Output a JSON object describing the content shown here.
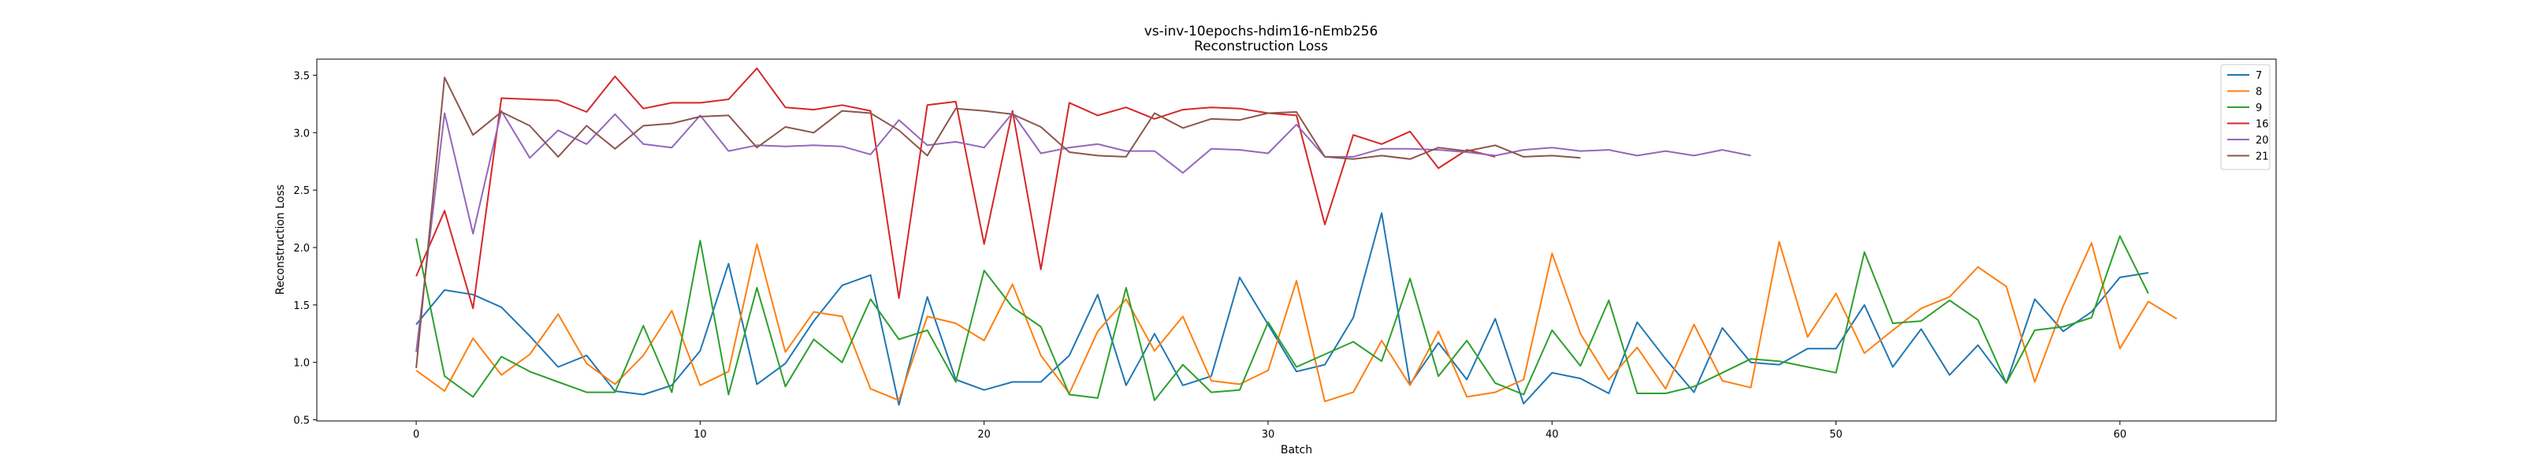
{
  "chart_data": {
    "type": "line",
    "title": "vs-inv-10epochs-hdim16-nEmb256",
    "subtitle": "Reconstruction Loss",
    "xlabel": "Batch",
    "ylabel": "Reconstruction Loss",
    "xlim": [
      -3.5,
      65.5
    ],
    "ylim": [
      0.49,
      3.64
    ],
    "xticks": [
      0,
      10,
      20,
      30,
      40,
      50,
      60
    ],
    "yticks": [
      0.5,
      1.0,
      1.5,
      2.0,
      2.5,
      3.0,
      3.5
    ],
    "xtick_labels": [
      "0",
      "10",
      "20",
      "30",
      "40",
      "50",
      "60"
    ],
    "ytick_labels": [
      "0.5",
      "1.0",
      "1.5",
      "2.0",
      "2.5",
      "3.0",
      "3.5"
    ],
    "grid": false,
    "legend_position": "top-right",
    "series": [
      {
        "name": "7",
        "color": "#1f77b4",
        "values": [
          1.33,
          1.63,
          1.59,
          1.48,
          1.23,
          0.96,
          1.06,
          0.75,
          0.72,
          0.8,
          1.1,
          1.86,
          0.81,
          0.99,
          1.36,
          1.67,
          1.76,
          0.63,
          1.57,
          0.85,
          0.76,
          0.83,
          0.83,
          1.06,
          1.59,
          0.8,
          1.25,
          0.8,
          0.88,
          1.74,
          1.33,
          0.92,
          0.98,
          1.39,
          2.3,
          0.81,
          1.17,
          0.85,
          1.38,
          0.64,
          0.91,
          0.86,
          0.73,
          1.35,
          1.03,
          0.74,
          1.3,
          1.0,
          0.98,
          1.12,
          1.12,
          1.5,
          0.96,
          1.29,
          0.89,
          1.15,
          0.82,
          1.55,
          1.27,
          1.44,
          1.74,
          1.78
        ]
      },
      {
        "name": "8",
        "color": "#ff7f0e",
        "values": [
          0.93,
          0.75,
          1.21,
          0.89,
          1.07,
          1.42,
          0.99,
          0.81,
          1.06,
          1.45,
          0.8,
          0.92,
          2.03,
          1.09,
          1.44,
          1.4,
          0.77,
          0.67,
          1.4,
          1.34,
          1.19,
          1.68,
          1.06,
          0.73,
          1.27,
          1.55,
          1.1,
          1.4,
          0.84,
          0.81,
          0.93,
          1.71,
          0.66,
          0.74,
          1.19,
          0.8,
          1.27,
          0.7,
          0.74,
          0.85,
          1.95,
          1.25,
          0.85,
          1.13,
          0.77,
          1.33,
          0.84,
          0.78,
          2.05,
          1.22,
          1.6,
          1.08,
          1.28,
          1.47,
          1.57,
          1.83,
          1.66,
          0.83,
          1.49,
          2.04,
          1.12,
          1.53,
          1.38
        ]
      },
      {
        "name": "9",
        "color": "#2ca02c",
        "values": [
          2.08,
          0.88,
          0.7,
          1.05,
          0.92,
          0.83,
          0.74,
          0.74,
          1.32,
          0.74,
          2.06,
          0.72,
          1.65,
          0.79,
          1.2,
          1.0,
          1.55,
          1.2,
          1.28,
          0.83,
          1.8,
          1.48,
          1.31,
          0.72,
          0.69,
          1.65,
          0.67,
          0.98,
          0.74,
          0.76,
          1.35,
          0.96,
          1.07,
          1.18,
          1.01,
          1.73,
          0.88,
          1.19,
          0.82,
          0.72,
          1.28,
          0.97,
          1.54,
          0.73,
          0.73,
          0.79,
          0.91,
          1.03,
          1.01,
          0.96,
          0.91,
          1.96,
          1.34,
          1.36,
          1.54,
          1.37,
          0.82,
          1.28,
          1.31,
          1.39,
          2.1,
          1.6
        ]
      },
      {
        "name": "16",
        "color": "#d62728",
        "values": [
          1.75,
          2.32,
          1.47,
          3.3,
          3.29,
          3.28,
          3.18,
          3.49,
          3.21,
          3.26,
          3.26,
          3.29,
          3.56,
          3.22,
          3.2,
          3.24,
          3.19,
          1.56,
          3.24,
          3.27,
          2.03,
          3.19,
          1.81,
          3.26,
          3.15,
          3.22,
          3.12,
          3.2,
          3.22,
          3.21,
          3.17,
          3.15,
          2.2,
          2.98,
          2.9,
          3.01,
          2.69,
          2.85,
          2.79
        ]
      },
      {
        "name": "20",
        "color": "#9467bd",
        "values": [
          1.09,
          3.17,
          2.12,
          3.19,
          2.78,
          3.02,
          2.9,
          3.16,
          2.9,
          2.87,
          3.15,
          2.84,
          2.89,
          2.88,
          2.89,
          2.88,
          2.81,
          3.11,
          2.89,
          2.92,
          2.87,
          3.17,
          2.82,
          2.87,
          2.9,
          2.84,
          2.84,
          2.65,
          2.86,
          2.85,
          2.82,
          3.07,
          2.79,
          2.79,
          2.86,
          2.86,
          2.85,
          2.83,
          2.8,
          2.85,
          2.87,
          2.84,
          2.85,
          2.8,
          2.84,
          2.8,
          2.85,
          2.8
        ]
      },
      {
        "name": "21",
        "color": "#8c564b",
        "values": [
          0.95,
          3.48,
          2.98,
          3.18,
          3.06,
          2.79,
          3.06,
          2.86,
          3.06,
          3.08,
          3.14,
          3.15,
          2.87,
          3.05,
          3.0,
          3.19,
          3.17,
          3.02,
          2.8,
          3.21,
          3.19,
          3.16,
          3.05,
          2.83,
          2.8,
          2.79,
          3.17,
          3.04,
          3.12,
          3.11,
          3.17,
          3.18,
          2.79,
          2.77,
          2.8,
          2.77,
          2.87,
          2.84,
          2.89,
          2.79,
          2.8,
          2.78
        ]
      }
    ]
  }
}
